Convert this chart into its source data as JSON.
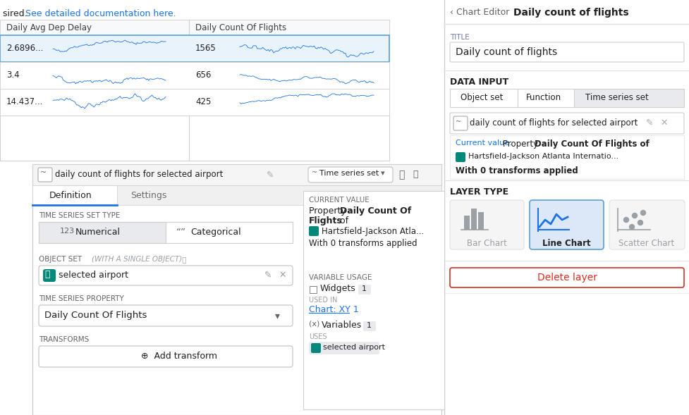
{
  "bg_color": "#f8f9fa",
  "white": "#ffffff",
  "light_blue_bg": "#dce8f8",
  "border_color": "#d0d0d0",
  "text_dark": "#202124",
  "text_gray": "#5f6368",
  "text_light": "#9aa0a6",
  "blue_link": "#1a73e8",
  "teal": "#00897b",
  "red_delete": "#d93025",
  "selected_bg": "#e8eaed",
  "line_blue": "#1a73e8",
  "separator": "#e0e0e0",
  "header_bg": "#f8f9fa",
  "top_text_plain": "sired. ",
  "top_text_link": "See detailed documentation here.",
  "table_col1": "Daily Avg Dep Delay",
  "table_col2": "Daily Count Of Flights",
  "row1_delay": "2.6896...",
  "row1_count": "1565",
  "row2_delay": "3.4",
  "row2_count": "656",
  "row3_delay": "14.437...",
  "row3_count": "425",
  "widget_title": "daily count of flights for selected airport",
  "ts_dropdown": "Time series set",
  "tab_definition": "Definition",
  "tab_settings": "Settings",
  "ts_set_type_label": "TIME SERIES SET TYPE",
  "btn_numerical": "Numerical",
  "btn_categorical": "Categorical",
  "obj_set_label": "OBJECT SET",
  "obj_set_hint": "(WITH A SINGLE OBJECT)",
  "obj_set_value": "selected airport",
  "ts_prop_label": "TIME SERIES PROPERTY",
  "ts_prop_value": "Daily Count Of Flights",
  "transforms_label": "TRANSFORMS",
  "add_transform": "Add transform",
  "curr_val_label": "CURRENT VALUE",
  "cv_prop_plain": "Property ",
  "cv_prop_bold": "Daily Count Of",
  "cv_flights": "Flights",
  "cv_of": " of",
  "cv_airport": "Hartsfield-Jackson Atla...",
  "cv_transforms": "With 0 transforms applied",
  "var_usage_label": "VARIABLE USAGE",
  "widgets_label": "Widgets",
  "widgets_count": "1",
  "used_in_label": "USED IN",
  "chart_xy": "Chart: XY 1",
  "variables_label": "Variables",
  "variables_count": "1",
  "uses_label": "USES",
  "uses_value": "selected airport",
  "rp_back": "‹ Chart Editor",
  "rp_title_header": "Daily count of flights",
  "rp_section_title": "TITLE",
  "rp_title_value": "Daily count of flights",
  "rp_section_data_input": "DATA INPUT",
  "rp_btn_object_set": "Object set",
  "rp_btn_function": "Function",
  "rp_btn_time_series_set": "Time series set",
  "rp_ts_name": "daily count of flights for selected airport",
  "rp_cv_label": "Current value:",
  "rp_cv_bold": "Daily Count Of Flights of",
  "rp_cv_airport": "Hartsfield-Jackson Atlanta Internatio...",
  "rp_cv_transforms": "With 0 transforms applied",
  "rp_section_layer": "LAYER TYPE",
  "rp_bar": "Bar Chart",
  "rp_line": "Line Chart",
  "rp_scatter": "Scatter Chart",
  "rp_delete": "Delete layer"
}
